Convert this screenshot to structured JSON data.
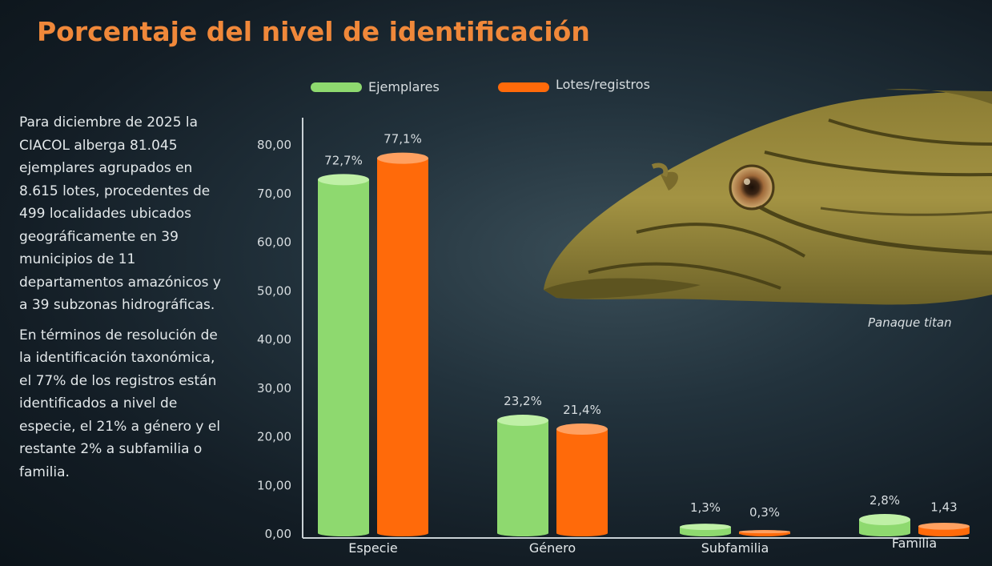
{
  "title": "Porcentaje del nivel de identificación",
  "paragraphs": [
    "Para diciembre de 2025 la CIACOL alberga 81.045 ejemplares agrupados en 8.615 lotes, procedentes de 499 localidades ubicados geográficamente en 39 municipios de 11 departamentos amazónicos y a 39 subzonas hidrográficas.",
    "En términos de resolución de la identificación taxonómica, el 77% de los registros están identificados a nivel de especie, el 21% a género y el restante 2% a subfamilia o familia."
  ],
  "image_caption": "Panaque titan",
  "colors": {
    "title": "#f0883a",
    "ejemplares": "#8ed96f",
    "lotes": "#ff6a0a"
  },
  "chart_data": {
    "type": "bar",
    "categories": [
      "Especie",
      "Género",
      "Subfamilia",
      "Familia"
    ],
    "series": [
      {
        "name": "Ejemplares",
        "values": [
          72.7,
          23.2,
          1.3,
          2.8
        ],
        "labels": [
          "72,7%",
          "23,2%",
          "1,3%",
          "2,8%"
        ]
      },
      {
        "name": "Lotes/registros",
        "values": [
          77.1,
          21.4,
          0.3,
          1.43
        ],
        "labels": [
          "77,1%",
          "21,4%",
          "0,3%",
          "1,43"
        ]
      }
    ],
    "ylim": [
      0,
      80
    ],
    "yticks": [
      "0,00",
      "10,00",
      "20,00",
      "30,00",
      "40,00",
      "50,00",
      "60,00",
      "70,00",
      "80,00"
    ],
    "legend": "top",
    "grid": false
  }
}
